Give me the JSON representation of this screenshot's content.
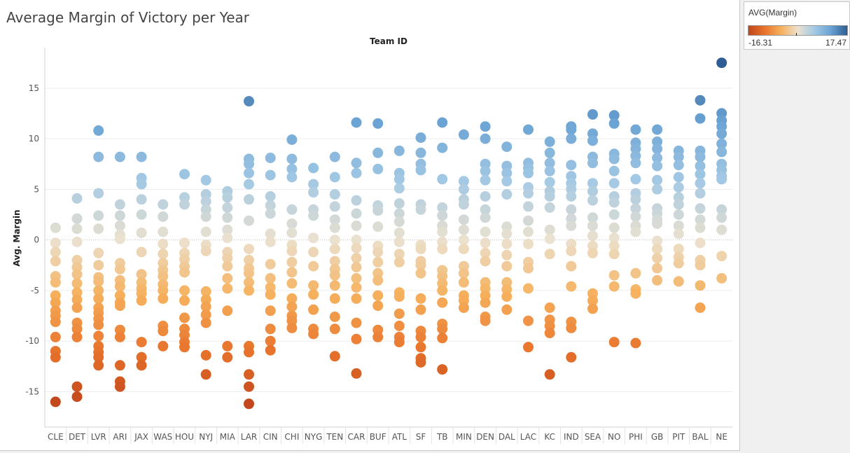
{
  "page": {
    "title": "Average Margin of Victory per Year"
  },
  "legend": {
    "title": "AVG(Margin)",
    "min_label": "-16.31",
    "max_label": "17.47",
    "colors": [
      "#c1461b",
      "#e8742c",
      "#f6b15d",
      "#ebe1cf",
      "#a3c9e4",
      "#6aa3d4",
      "#2e5d94"
    ]
  },
  "chart_data": {
    "type": "scatter",
    "title": "Average Margin of Victory per Year",
    "column_header": "Team ID",
    "xlabel": "",
    "ylabel": "Avg. Margin",
    "ylim": [
      -18.5,
      19
    ],
    "yticks": [
      15,
      10,
      5,
      0,
      -5,
      -10,
      -15
    ],
    "grid": true,
    "color_range": [
      -16.31,
      17.47
    ],
    "categories": [
      "CLE",
      "DET",
      "LVR",
      "ARI",
      "JAX",
      "WAS",
      "HOU",
      "NYJ",
      "MIA",
      "LAR",
      "CIN",
      "CHI",
      "NYG",
      "TEN",
      "CAR",
      "BUF",
      "ATL",
      "SF",
      "TB",
      "MIN",
      "DEN",
      "DAL",
      "LAC",
      "KC",
      "IND",
      "SEA",
      "NO",
      "PHI",
      "GB",
      "PIT",
      "BAL",
      "NE"
    ],
    "values": [
      [
        1.2,
        -0.3,
        -1.2,
        -2.1,
        -3.6,
        -4.2,
        -5.5,
        -6.2,
        -7.0,
        -7.5,
        -8.1,
        -9.6,
        -11.0,
        -11.6,
        -16.0
      ],
      [
        4.1,
        2.1,
        1.1,
        -0.2,
        -2.0,
        -2.7,
        -3.4,
        -4.3,
        -5.2,
        -5.9,
        -6.7,
        -8.2,
        -8.8,
        -9.6,
        -14.5,
        -15.5
      ],
      [
        10.8,
        8.2,
        4.6,
        2.4,
        1.1,
        -1.3,
        -2.5,
        -3.7,
        -4.1,
        -5.0,
        -5.8,
        -6.7,
        -7.2,
        -7.8,
        -8.4,
        -9.5,
        -10.5,
        -11.1,
        -11.6,
        -12.4
      ],
      [
        8.2,
        3.5,
        2.4,
        1.4,
        0.5,
        0.1,
        -2.3,
        -2.9,
        -4.0,
        -4.6,
        -5.5,
        -6.2,
        -6.5,
        -8.9,
        -9.6,
        -12.4,
        -14.0,
        -14.5
      ],
      [
        8.2,
        6.1,
        5.5,
        4.0,
        2.5,
        0.7,
        -1.2,
        -3.4,
        -4.2,
        -4.8,
        -5.3,
        -6.0,
        -10.1,
        -11.6,
        -12.4
      ],
      [
        3.5,
        2.3,
        0.8,
        -0.4,
        -1.4,
        -2.3,
        -3.0,
        -3.6,
        -4.4,
        -5.0,
        -5.8,
        -8.5,
        -9.0,
        -10.5
      ],
      [
        6.5,
        4.2,
        3.5,
        -0.3,
        -1.3,
        -1.9,
        -2.6,
        -3.2,
        -5.0,
        -6.0,
        -7.7,
        -8.8,
        -9.4,
        -10.1,
        -10.6
      ],
      [
        5.9,
        4.5,
        3.8,
        3.0,
        2.3,
        0.8,
        -0.5,
        -1.1,
        -5.1,
        -5.9,
        -6.6,
        -7.4,
        -8.2,
        -11.4,
        -13.3
      ],
      [
        4.8,
        4.2,
        3.2,
        2.2,
        1.0,
        0.2,
        -1.2,
        -1.8,
        -2.6,
        -3.8,
        -4.8,
        -7.0,
        -10.5,
        -11.6
      ],
      [
        13.7,
        8.0,
        7.5,
        6.6,
        5.5,
        4.0,
        1.9,
        -0.9,
        -2.0,
        -2.8,
        -3.3,
        -4.2,
        -5.0,
        -10.5,
        -11.1,
        -13.3,
        -14.5,
        -16.2
      ],
      [
        8.1,
        6.4,
        4.3,
        3.4,
        2.6,
        0.6,
        -0.2,
        -2.4,
        -3.8,
        -4.7,
        -5.4,
        -7.0,
        -8.8,
        -10.0,
        -10.9
      ],
      [
        9.9,
        8.0,
        7.0,
        6.2,
        3.0,
        1.6,
        0.7,
        -0.5,
        -1.1,
        -2.2,
        -3.2,
        -4.3,
        -5.8,
        -6.6,
        -7.5,
        -8.0,
        -8.7
      ],
      [
        7.1,
        5.5,
        4.7,
        3.0,
        2.4,
        0.2,
        -1.2,
        -2.6,
        -4.5,
        -5.4,
        -6.9,
        -8.8,
        -9.3
      ],
      [
        8.2,
        6.2,
        4.5,
        3.3,
        2.0,
        1.2,
        0.0,
        -0.9,
        -2.1,
        -2.9,
        -3.5,
        -4.5,
        -5.8,
        -7.6,
        -8.8,
        -11.5
      ],
      [
        11.6,
        7.6,
        6.6,
        3.9,
        2.6,
        1.4,
        0.0,
        -0.8,
        -1.8,
        -2.7,
        -3.8,
        -4.7,
        -5.8,
        -8.2,
        -9.8,
        -13.2
      ],
      [
        11.5,
        8.6,
        7.0,
        3.4,
        2.9,
        1.3,
        -0.6,
        -1.2,
        -2.2,
        -3.3,
        -4.0,
        -5.5,
        -6.5,
        -8.9,
        -9.6
      ],
      [
        8.8,
        6.6,
        6.0,
        5.1,
        3.6,
        2.6,
        1.8,
        0.7,
        -0.2,
        -1.4,
        -2.2,
        -5.2,
        -5.6,
        -7.3,
        -8.5,
        -9.6,
        -10.1
      ],
      [
        10.1,
        8.6,
        7.5,
        6.9,
        3.5,
        3.0,
        -0.5,
        -0.9,
        -2.1,
        -2.5,
        -3.3,
        -5.8,
        -6.9,
        -9.0,
        -9.6,
        -10.6,
        -11.7,
        -12.1
      ],
      [
        11.6,
        9.1,
        6.0,
        3.2,
        2.4,
        1.4,
        0.8,
        -0.2,
        -0.9,
        -3.0,
        -3.6,
        -4.3,
        -5.0,
        -6.2,
        -8.3,
        -8.8,
        -9.7,
        -12.8
      ],
      [
        10.4,
        5.8,
        5.0,
        4.0,
        3.5,
        2.0,
        1.0,
        0.0,
        -0.9,
        -2.6,
        -3.3,
        -4.2,
        -5.5,
        -6.0,
        -6.7
      ],
      [
        11.2,
        10.0,
        7.5,
        6.8,
        5.9,
        4.3,
        3.0,
        2.2,
        0.8,
        -0.3,
        -1.3,
        -2.1,
        -4.2,
        -4.8,
        -5.5,
        -6.2,
        -7.6,
        -8.0
      ],
      [
        9.2,
        7.3,
        6.6,
        5.8,
        4.5,
        1.3,
        0.6,
        -0.4,
        -1.5,
        -2.6,
        -4.2,
        -4.9,
        -5.6,
        -6.9
      ],
      [
        10.9,
        7.6,
        7.1,
        6.6,
        5.2,
        4.6,
        3.3,
        1.9,
        0.8,
        -0.4,
        -2.2,
        -2.8,
        -4.8,
        -8.0,
        -10.6
      ],
      [
        9.7,
        8.6,
        7.6,
        6.8,
        5.7,
        4.8,
        4.3,
        3.2,
        1.0,
        0.1,
        -1.4,
        -6.7,
        -7.9,
        -8.5,
        -9.2,
        -13.3
      ],
      [
        11.2,
        10.9,
        10.0,
        7.4,
        6.3,
        5.6,
        5.0,
        4.3,
        3.0,
        2.1,
        1.4,
        -0.4,
        -1.1,
        -2.6,
        -4.6,
        -8.1,
        -8.7,
        -11.6
      ],
      [
        12.4,
        10.5,
        9.8,
        8.2,
        7.6,
        5.6,
        4.8,
        3.9,
        2.2,
        1.4,
        0.4,
        -0.6,
        -1.3,
        -5.3,
        -6.0,
        -6.8
      ],
      [
        12.3,
        11.5,
        8.5,
        8.0,
        6.8,
        5.6,
        4.3,
        3.7,
        2.5,
        1.2,
        0.2,
        -0.6,
        -1.4,
        -3.5,
        -4.6,
        -10.1
      ],
      [
        10.9,
        9.6,
        9.0,
        8.3,
        7.6,
        6.0,
        4.6,
        4.0,
        3.1,
        2.3,
        1.4,
        0.8,
        -3.3,
        -4.9,
        -5.3,
        -10.2
      ],
      [
        10.9,
        9.7,
        9.0,
        8.1,
        7.3,
        5.9,
        5.0,
        3.1,
        2.6,
        2.0,
        1.6,
        -0.1,
        -0.9,
        -1.8,
        -2.8,
        -4.0
      ],
      [
        8.8,
        8.2,
        7.4,
        6.2,
        5.2,
        4.2,
        3.5,
        2.5,
        1.4,
        0.6,
        -0.9,
        -1.7,
        -2.3,
        -4.1
      ],
      [
        13.8,
        12.0,
        8.8,
        8.2,
        7.3,
        6.5,
        5.6,
        4.6,
        3.1,
        2.0,
        1.2,
        -0.3,
        -2.0,
        -2.5,
        -4.5,
        -6.7
      ],
      [
        17.5,
        12.5,
        11.8,
        11.2,
        10.5,
        9.5,
        8.7,
        7.5,
        6.9,
        6.3,
        6.0,
        3.0,
        2.2,
        1.0,
        -1.6,
        -3.8
      ]
    ]
  }
}
